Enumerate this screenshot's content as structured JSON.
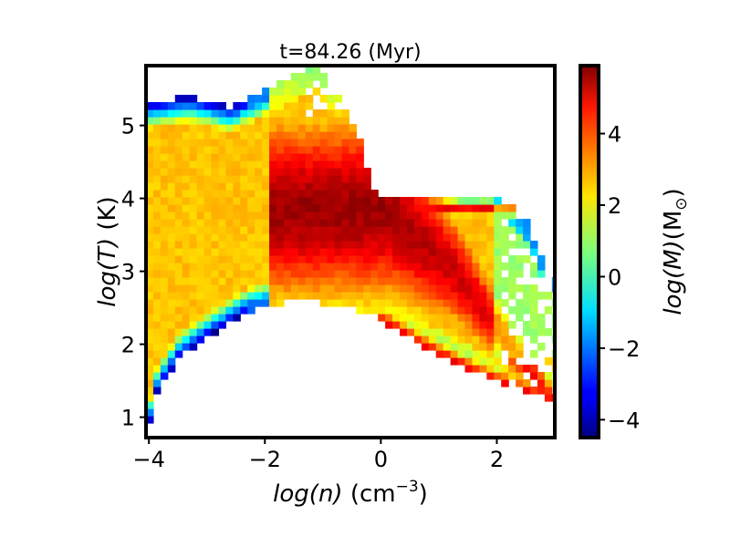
{
  "chart_data": {
    "type": "heatmap",
    "title": "t=84.26 (Myr)",
    "xlabel_parts": {
      "main": "log(n)",
      "unit_base": "(cm",
      "unit_exp": "−3",
      "unit_close": ")"
    },
    "ylabel_parts": {
      "main": "log(T)",
      "unit": "(K)"
    },
    "colorbar_label_parts": {
      "main": "log(M)",
      "unit_open": "(M",
      "unit_sub": "⊙",
      "unit_close": ")"
    },
    "xlim": [
      -4.05,
      3.0
    ],
    "ylim": [
      0.72,
      5.82
    ],
    "clim": [
      -4.5,
      5.9
    ],
    "colormap": "jet",
    "grid": false,
    "bin_size": {
      "dx": 0.125,
      "dy": 0.1
    },
    "x_ticks": [
      {
        "value": -4,
        "label": "−4"
      },
      {
        "value": -2,
        "label": "−2"
      },
      {
        "value": 0,
        "label": "0"
      },
      {
        "value": 2,
        "label": "2"
      }
    ],
    "y_ticks": [
      {
        "value": 1,
        "label": "1"
      },
      {
        "value": 2,
        "label": "2"
      },
      {
        "value": 3,
        "label": "3"
      },
      {
        "value": 4,
        "label": "4"
      },
      {
        "value": 5,
        "label": "5"
      }
    ],
    "colorbar_ticks": [
      {
        "value": -4,
        "label": "−4"
      },
      {
        "value": -2,
        "label": "−2"
      },
      {
        "value": 0,
        "label": "0"
      },
      {
        "value": 2,
        "label": "2"
      },
      {
        "value": 4,
        "label": "4"
      }
    ]
  }
}
